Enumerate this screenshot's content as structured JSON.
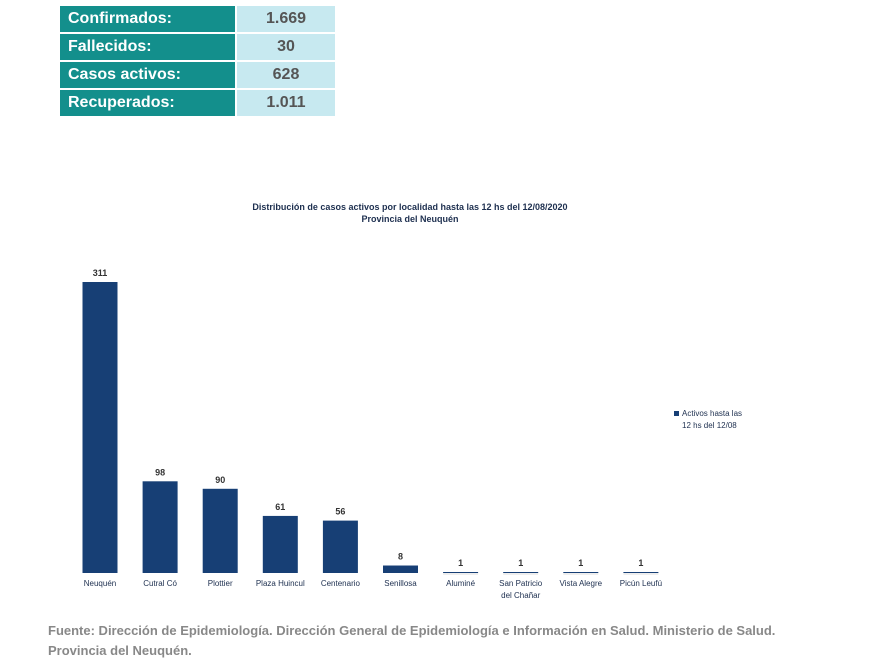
{
  "summary": [
    {
      "label": "Confirmados:",
      "value": "1.669"
    },
    {
      "label": "Fallecidos:",
      "value": "30"
    },
    {
      "label": "Casos activos:",
      "value": "628"
    },
    {
      "label": "Recuperados:",
      "value": "1.011"
    }
  ],
  "chart_data": {
    "type": "bar",
    "title": "Distribución de casos activos por localidad hasta las 12 hs del  12/08/2020",
    "subtitle": "Provincia del Neuquén",
    "categories": [
      "Neuquén",
      "Cutral Có",
      "Plottier",
      "Plaza Huincul",
      "Centenario",
      "Senillosa",
      "Aluminé",
      "San Patricio del Chañar",
      "Vista Alegre",
      "Picún Leufú"
    ],
    "series": [
      {
        "name": "Activos hasta las 12 hs del 12/08",
        "values": [
          311,
          98,
          90,
          61,
          56,
          8,
          1,
          1,
          1,
          1
        ]
      }
    ],
    "legend_lines": [
      "Activos hasta las",
      "12 hs del 12/08"
    ],
    "legend_position": "right",
    "color": "#173f75",
    "ylim": [
      0,
      311
    ],
    "grid": false
  },
  "footer": "Fuente: Dirección de Epidemiología. Dirección General de Epidemiología e Información en Salud. Ministerio de Salud. Provincia del Neuquén."
}
